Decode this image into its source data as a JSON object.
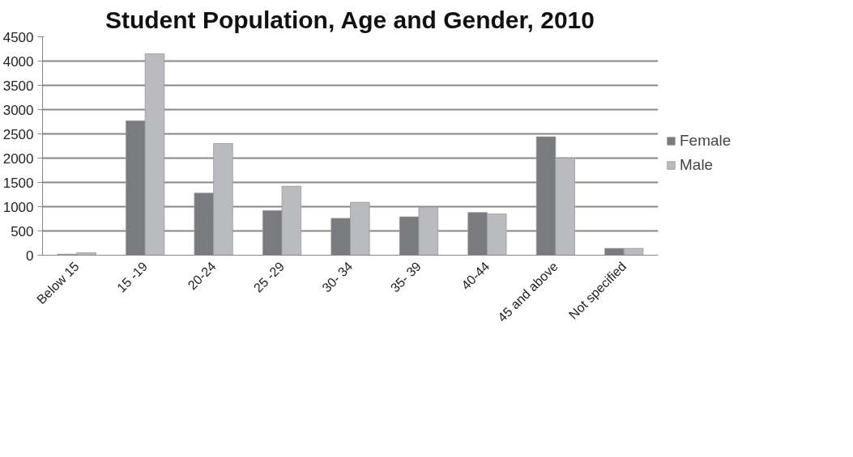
{
  "chart_data": {
    "type": "bar",
    "title": "Student Population, Age and Gender, 2010",
    "categories": [
      "Below 15",
      "15 -19",
      "20-24",
      "25 -29",
      "30- 34",
      "35- 39",
      "40-44",
      "45 and above",
      "Not specified"
    ],
    "series": [
      {
        "name": "Female",
        "color": "#7a7b7f",
        "values": [
          20,
          2770,
          1280,
          920,
          760,
          790,
          880,
          2440,
          140
        ]
      },
      {
        "name": "Male",
        "color": "#babbbf",
        "values": [
          50,
          4150,
          2300,
          1420,
          1090,
          990,
          850,
          2000,
          140
        ]
      }
    ],
    "ylim": [
      0,
      4500
    ],
    "yticks": [
      0,
      500,
      1000,
      1500,
      2000,
      2500,
      3000,
      3500,
      4000,
      4500
    ],
    "grid": "y",
    "legend": "right"
  }
}
